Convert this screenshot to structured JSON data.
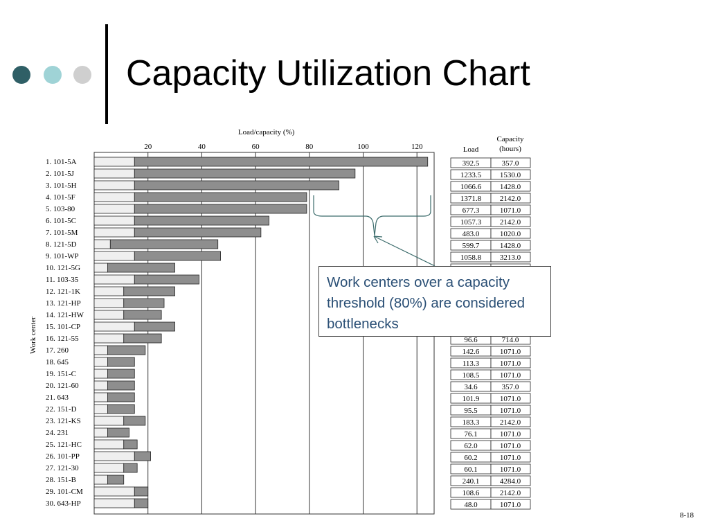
{
  "slide": {
    "title": "Capacity Utilization Chart",
    "number": "8-18",
    "callout": "Work centers over a capacity threshold (80%) are considered bottlenecks"
  },
  "chart_data": {
    "type": "bar",
    "title": "Load/capacity (%)",
    "ylabel": "Work center",
    "x_ticks": [
      20,
      40,
      60,
      80,
      100,
      120
    ],
    "xlim": [
      0,
      125
    ],
    "table_headers": {
      "load": "Load",
      "capacity_line1": "Capacity",
      "capacity_line2": "(hours)"
    },
    "categories": [
      "1. 101-5A",
      "2. 101-5J",
      "3. 101-5H",
      "4. 101-5F",
      "5. 103-80",
      "6. 101-5C",
      "7. 101-5M",
      "8. 121-5D",
      "9. 101-WP",
      "10. 121-5G",
      "11. 103-35",
      "12. 121-1K",
      "13. 121-HP",
      "14. 121-HW",
      "15. 101-CP",
      "16. 121-55",
      "17. 260",
      "18. 645",
      "19. 151-C",
      "20. 121-60",
      "21. 643",
      "22. 151-D",
      "23. 121-KS",
      "24. 231",
      "25. 121-HC",
      "26. 101-PP",
      "27. 121-30",
      "28. 151-B",
      "29. 101-CM",
      "30. 643-HP"
    ],
    "series": [
      {
        "values": [
          15,
          15,
          15,
          15,
          15,
          15,
          15,
          6,
          15,
          5,
          15,
          11,
          11,
          11,
          15,
          11,
          5,
          5,
          5,
          5,
          5,
          5,
          11,
          5,
          11,
          15,
          11,
          5,
          15,
          15
        ]
      },
      {
        "values": [
          124,
          97,
          91,
          79,
          79,
          65,
          62,
          46,
          47,
          30,
          39,
          30,
          26,
          25,
          30,
          25,
          19,
          15,
          15,
          15,
          15,
          15,
          19,
          13,
          16,
          21,
          16,
          11,
          20,
          20
        ]
      }
    ],
    "load": [
      "392.5",
      "1233.5",
      "1066.6",
      "1371.8",
      "677.3",
      "1057.3",
      "483.0",
      "599.7",
      "1058.8",
      "",
      "",
      "",
      "",
      "",
      "",
      "96.6",
      "142.6",
      "113.3",
      "108.5",
      "34.6",
      "101.9",
      "95.5",
      "183.3",
      "76.1",
      "62.0",
      "60.2",
      "60.1",
      "240.1",
      "108.6",
      "48.0"
    ],
    "capacity": [
      "357.0",
      "1530.0",
      "1428.0",
      "2142.0",
      "1071.0",
      "2142.0",
      "1020.0",
      "1428.0",
      "3213.0",
      "",
      "",
      "",
      "",
      "",
      "",
      "714.0",
      "1071.0",
      "1071.0",
      "1071.0",
      "357.0",
      "1071.0",
      "1071.0",
      "2142.0",
      "1071.0",
      "1071.0",
      "1071.0",
      "1071.0",
      "4284.0",
      "2142.0",
      "1071.0"
    ],
    "colors": {
      "light": "#efefef",
      "dark": "#8e8e8e",
      "callout_text": "#2a4f75",
      "connector": "#3b6b6b"
    }
  }
}
